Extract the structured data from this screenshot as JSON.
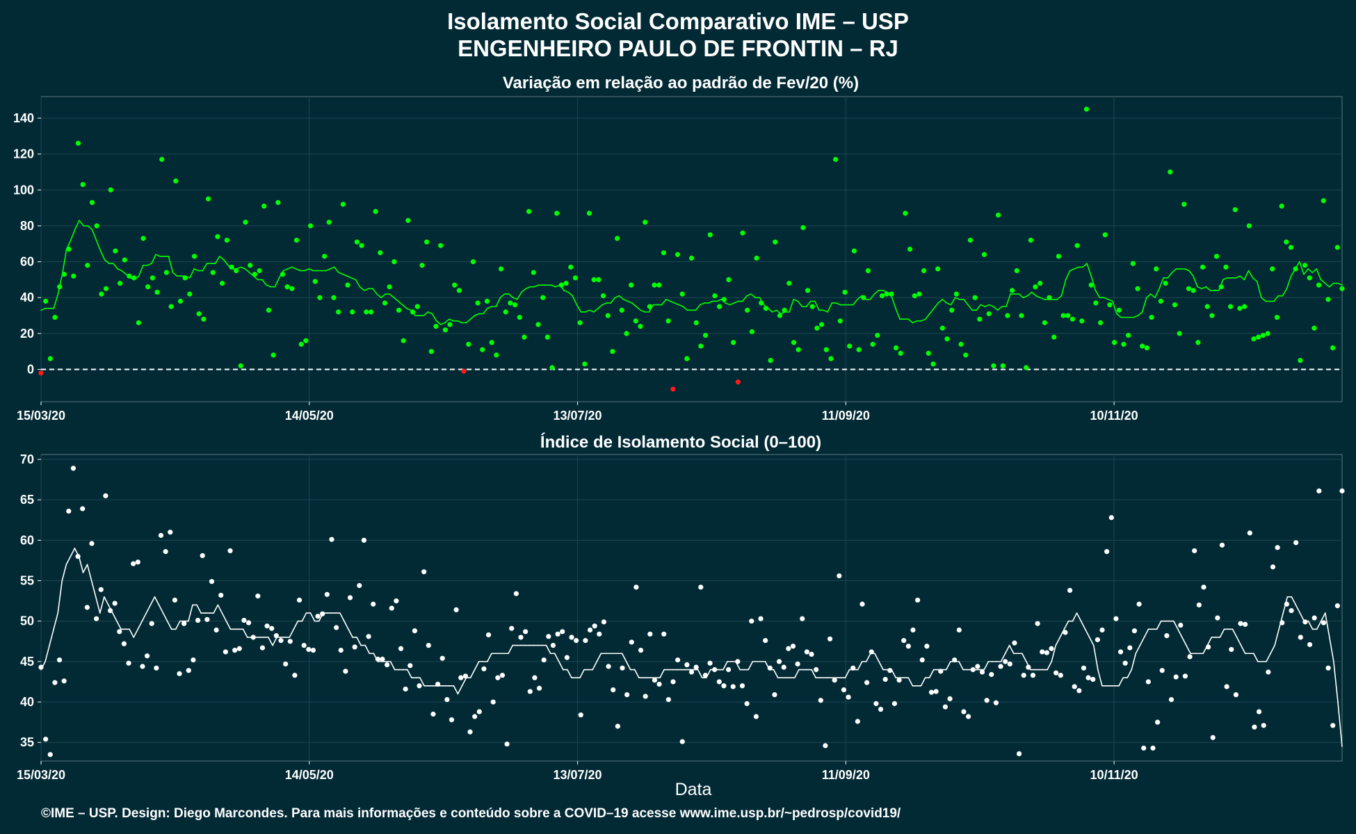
{
  "header": {
    "title_line1": "Isolamento Social Comparativo IME – USP",
    "title_line2": "ENGENHEIRO PAULO DE FRONTIN – RJ"
  },
  "footer": {
    "caption": "©IME – USP. Design: Diego Marcondes. Para mais informações e conteúdo sobre a COVID–19 acesse www.ime.usp.br/~pedrosp/covid19/"
  },
  "colors": {
    "background": "#022a35",
    "grid": "#1f4752",
    "frame": "#5b7880",
    "positive": "#00ff00",
    "negative": "#ff1a1a",
    "index": "#ffffff"
  },
  "chart_data": [
    {
      "type": "scatter",
      "title": "Variação em relação ao padrão de Fev/20 (%)",
      "xlabel": "",
      "x_start": "2020-03-15",
      "x_end": "2020-12-31",
      "x_ticks": [
        "15/03/20",
        "14/05/20",
        "13/07/20",
        "11/09/20",
        "10/11/20"
      ],
      "y_ticks": [
        0,
        20,
        40,
        60,
        80,
        100,
        120,
        140
      ],
      "ylim": [
        -18,
        152
      ],
      "reference_line": 0,
      "grid": true,
      "points": [
        -2,
        38,
        6,
        29,
        46,
        53,
        67,
        52,
        126,
        103,
        58,
        93,
        80,
        42,
        45,
        100,
        66,
        48,
        61,
        52,
        51,
        26,
        73,
        46,
        51,
        43,
        117,
        54,
        35,
        105,
        38,
        51,
        42,
        63,
        31,
        28,
        95,
        54,
        74,
        48,
        72,
        57,
        55,
        2,
        82,
        58,
        53,
        55,
        91,
        33,
        8,
        93,
        53,
        46,
        45,
        72,
        14,
        16,
        80,
        49,
        40,
        63,
        82,
        40,
        32,
        92,
        47,
        32,
        71,
        69,
        32,
        32,
        88,
        65,
        37,
        46,
        60,
        33,
        16,
        83,
        32,
        35,
        58,
        71,
        10,
        24,
        69,
        22,
        25,
        47,
        44,
        -1,
        14,
        60,
        37,
        11,
        38,
        15,
        8,
        56,
        32,
        37,
        36,
        29,
        18,
        88,
        54,
        25,
        40,
        18,
        1,
        87,
        47,
        48,
        57,
        51,
        26,
        3,
        87,
        50,
        50,
        41,
        30,
        10,
        73,
        33,
        20,
        47,
        27,
        24,
        82,
        35,
        47,
        47,
        65,
        27,
        -11,
        64,
        42,
        6,
        62,
        26,
        13,
        19,
        75,
        41,
        35,
        39,
        50,
        15,
        -7,
        76,
        33,
        21,
        62,
        37,
        34,
        5,
        71,
        30,
        33,
        48,
        15,
        11,
        79,
        44,
        35,
        23,
        25,
        11,
        6,
        117,
        27,
        43,
        13,
        66,
        11,
        40,
        55,
        14,
        19,
        41,
        42,
        42,
        12,
        9,
        87,
        67,
        41,
        42,
        55,
        9,
        3,
        56,
        23,
        17,
        33,
        42,
        14,
        8,
        72,
        40,
        28,
        64,
        31,
        2,
        86,
        2,
        30,
        44,
        55,
        30,
        1,
        72,
        46,
        48,
        26,
        40,
        18,
        63,
        30,
        30,
        28,
        69,
        27,
        145,
        47,
        37,
        26,
        75,
        36,
        15,
        33,
        14,
        19,
        59,
        45,
        13,
        12,
        29,
        56,
        38,
        48,
        110,
        36,
        20,
        92,
        45,
        44,
        15,
        57,
        35,
        30,
        63,
        46,
        57,
        35,
        89,
        34,
        35,
        80,
        17,
        18,
        19,
        20,
        56,
        29,
        91,
        71,
        68,
        56,
        5,
        58,
        51,
        23,
        47,
        94,
        39,
        12,
        68,
        45
      ],
      "moving_average": [
        33,
        34,
        34,
        34,
        42,
        53,
        67,
        72,
        78,
        83,
        80,
        80,
        78,
        72,
        66,
        61,
        59,
        59,
        56,
        55,
        53,
        51,
        50,
        52,
        58,
        58,
        59,
        64,
        63,
        63,
        63,
        54,
        52,
        52,
        52,
        51,
        56,
        55,
        55,
        59,
        59,
        59,
        63,
        61,
        58,
        56,
        56,
        57,
        56,
        54,
        52,
        50,
        50,
        47,
        46,
        46,
        51,
        55,
        56,
        57,
        56,
        55,
        55,
        56,
        55,
        55,
        55,
        55,
        56,
        57,
        54,
        53,
        52,
        51,
        50,
        46,
        44,
        45,
        45,
        42,
        40,
        42,
        42,
        40,
        38,
        36,
        34,
        33,
        30,
        30,
        30,
        32,
        31,
        27,
        25,
        26,
        28,
        27,
        27,
        26,
        26,
        28,
        30,
        31,
        31,
        34,
        35,
        35,
        40,
        42,
        42,
        40,
        39,
        43,
        45,
        46,
        46,
        47,
        47,
        47,
        47,
        46,
        47,
        44,
        43,
        41,
        36,
        32,
        32,
        33,
        32,
        34,
        36,
        37,
        37,
        40,
        41,
        39,
        38,
        37,
        35,
        33,
        32,
        32,
        36,
        36,
        36,
        39,
        38,
        37,
        36,
        35,
        33,
        33,
        33,
        36,
        37,
        37,
        38,
        38,
        39,
        37,
        36,
        37,
        38,
        38,
        41,
        42,
        40,
        40,
        36,
        34,
        32,
        33,
        31,
        32,
        32,
        39,
        38,
        35,
        35,
        38,
        38,
        33,
        33,
        32,
        37,
        37,
        36,
        36,
        36,
        36,
        39,
        41,
        39,
        39,
        42,
        44,
        44,
        43,
        41,
        34,
        28,
        28,
        28,
        26,
        27,
        27,
        28,
        31,
        34,
        37,
        39,
        37,
        36,
        40,
        39,
        39,
        36,
        33,
        33,
        36,
        35,
        36,
        35,
        33,
        35,
        35,
        42,
        42,
        42,
        40,
        41,
        43,
        41,
        40,
        39,
        39,
        39,
        39,
        41,
        50,
        55,
        56,
        57,
        57,
        59,
        52,
        44,
        40,
        40,
        39,
        38,
        31,
        29,
        29,
        29,
        29,
        30,
        32,
        40,
        42,
        40,
        45,
        51,
        51,
        54,
        56,
        56,
        56,
        55,
        52,
        46,
        45,
        46,
        44,
        44,
        44,
        50,
        51,
        51,
        51,
        52,
        50,
        55,
        51,
        49,
        40,
        38,
        38,
        38,
        41,
        41,
        45,
        52,
        56,
        60,
        53,
        56,
        54,
        56,
        50,
        48,
        46,
        48,
        48,
        47
      ]
    },
    {
      "type": "scatter",
      "title": "Índice de Isolamento Social (0–100)",
      "xlabel": "Data",
      "x_start": "2020-03-15",
      "x_end": "2020-12-31",
      "x_ticks": [
        "15/03/20",
        "14/05/20",
        "13/07/20",
        "11/09/20",
        "10/11/20"
      ],
      "y_ticks": [
        35,
        40,
        45,
        50,
        55,
        60,
        65,
        70
      ],
      "ylim": [
        32.7,
        70.6
      ],
      "grid": true,
      "points": [
        44.3,
        35.4,
        33.5,
        42.4,
        45.2,
        42.6,
        63.6,
        68.9,
        58.0,
        63.9,
        51.7,
        59.6,
        50.3,
        53.9,
        65.5,
        51.3,
        52.2,
        48.7,
        47.2,
        44.8,
        57.1,
        57.3,
        44.4,
        45.7,
        49.7,
        44.2,
        60.6,
        58.6,
        61.0,
        52.6,
        43.5,
        49.7,
        43.9,
        45.2,
        50.1,
        58.1,
        50.2,
        54.9,
        48.9,
        53.2,
        46.2,
        58.7,
        46.4,
        46.6,
        50.1,
        49.8,
        48.0,
        53.1,
        46.7,
        49.4,
        49.1,
        48.2,
        47.6,
        44.7,
        47.5,
        43.3,
        52.6,
        47.0,
        46.5,
        46.4,
        50.6,
        50.9,
        53.3,
        60.1,
        49.2,
        46.4,
        43.8,
        52.9,
        46.8,
        54.4,
        60.0,
        48.1,
        52.1,
        45.3,
        45.3,
        44.6,
        51.6,
        52.5,
        46.6,
        41.6,
        44.5,
        48.8,
        42.0,
        56.1,
        47.0,
        38.5,
        42.2,
        45.4,
        40.3,
        37.8,
        51.4,
        43.0,
        43.2,
        36.3,
        38.2,
        38.8,
        44.1,
        48.3,
        40.0,
        43.0,
        43.3,
        34.8,
        49.1,
        53.4,
        48.0,
        48.7,
        41.3,
        43.0,
        41.7,
        45.2,
        48.1,
        47.0,
        48.4,
        48.7,
        45.5,
        48.0,
        47.6,
        38.4,
        47.6,
        48.9,
        49.4,
        48.4,
        49.9,
        44.4,
        41.5,
        37.0,
        44.2,
        40.9,
        47.4,
        54.2,
        46.4,
        40.7,
        48.4,
        42.7,
        42.2,
        48.4,
        40.3,
        42.5,
        45.2,
        35.1,
        44.6,
        43.7,
        44.3,
        54.2,
        43.3,
        44.8,
        44.0,
        42.5,
        42.0,
        44.0,
        41.9,
        45.0,
        42.0,
        39.8,
        50.0,
        38.2,
        50.3,
        47.6,
        44.2,
        40.9,
        45.0,
        44.3,
        46.6,
        46.9,
        44.7,
        50.3,
        46.2,
        45.9,
        44.0,
        40.2,
        34.6,
        47.8,
        42.7,
        55.6,
        41.5,
        40.6,
        44.2,
        37.6,
        52.1,
        42.4,
        46.2,
        39.8,
        39.1,
        42.8,
        43.9,
        39.8,
        42.7,
        47.6,
        46.9,
        48.9,
        52.6,
        45.2,
        46.9,
        41.2,
        41.3,
        43.8,
        39.4,
        40.4,
        45.2,
        48.9,
        38.8,
        38.2,
        44.0,
        44.4,
        43.7,
        40.2,
        43.4,
        39.9,
        44.4,
        45.0,
        44.7,
        47.3,
        33.6,
        43.3,
        44.3,
        43.3,
        49.7,
        46.2,
        46.1,
        46.6,
        43.6,
        43.3,
        48.6,
        53.8,
        41.9,
        41.4,
        44.2,
        43.0,
        42.8,
        47.7,
        48.9,
        58.6,
        62.8,
        50.3,
        46.2,
        44.8,
        46.7,
        48.8,
        52.1,
        34.3,
        42.5,
        34.3,
        37.5,
        43.9,
        48.2,
        40.3,
        43.1,
        49.5,
        43.2,
        45.6,
        58.7,
        52.0,
        54.2,
        46.8,
        35.6,
        50.4,
        59.4,
        41.9,
        46.5,
        40.9,
        49.7,
        49.6,
        60.9,
        36.9,
        38.8,
        37.1,
        43.7,
        56.7,
        59.1,
        49.8,
        52.1,
        51.3,
        59.7,
        48.0,
        49.9,
        47.1,
        50.4,
        66.1,
        49.8,
        44.2,
        37.1,
        51.9,
        66.1
      ],
      "moving_average": [
        44,
        45,
        47,
        49,
        51,
        55,
        57,
        58,
        59,
        58,
        56,
        57,
        55,
        53,
        51,
        53,
        52,
        51,
        50,
        49,
        49,
        49,
        48,
        49,
        50,
        51,
        52,
        53,
        52,
        51,
        50,
        49,
        49,
        50,
        50,
        50,
        52,
        52,
        51,
        51,
        51,
        51,
        52,
        51,
        50,
        49,
        49,
        49,
        49,
        48,
        48,
        48,
        48,
        48,
        48,
        47,
        48,
        48,
        48,
        48,
        49,
        50,
        50,
        51,
        51,
        50,
        50,
        51,
        51,
        51,
        51,
        51,
        50,
        49,
        48,
        48,
        47,
        47,
        46,
        46,
        45,
        45,
        45,
        45,
        44,
        44,
        44,
        44,
        43,
        43,
        43,
        42,
        42,
        42,
        42,
        42,
        42,
        42,
        42,
        41,
        42,
        43,
        43,
        44,
        45,
        45,
        45,
        46,
        46,
        46,
        46,
        46,
        47,
        47,
        47,
        47,
        47,
        47,
        47,
        47,
        47,
        46,
        46,
        45,
        44,
        44,
        43,
        43,
        43,
        44,
        44,
        44,
        45,
        46,
        46,
        46,
        46,
        46,
        46,
        45,
        44,
        44,
        43,
        43,
        43,
        43,
        43,
        43,
        44,
        44,
        44,
        44,
        44,
        44,
        44,
        44,
        44,
        43,
        43,
        44,
        44,
        44,
        44,
        45,
        45,
        45,
        44,
        44,
        44,
        45,
        45,
        45,
        45,
        44,
        44,
        43,
        43,
        43,
        43,
        43,
        44,
        44,
        44,
        44,
        43,
        43,
        43,
        43,
        43,
        43,
        43,
        43,
        44,
        44,
        44,
        45,
        45,
        46,
        46,
        45,
        44,
        44,
        44,
        43,
        43,
        43,
        43,
        42,
        42,
        42,
        43,
        43,
        44,
        44,
        44,
        44,
        45,
        45,
        45,
        44,
        44,
        44,
        44,
        44,
        44,
        45,
        45,
        45,
        45,
        46,
        47,
        46,
        46,
        46,
        45,
        44,
        44,
        44,
        44,
        44,
        45,
        47,
        48,
        49,
        50,
        50,
        51,
        50,
        49,
        48,
        47,
        44,
        42,
        42,
        42,
        42,
        42,
        43,
        43,
        44,
        46,
        47,
        48,
        49,
        49,
        49,
        50,
        50,
        50,
        50,
        49,
        48,
        47,
        46,
        46,
        46,
        46,
        47,
        48,
        48,
        48,
        49,
        49,
        49,
        48,
        47,
        46,
        46,
        46,
        45,
        45,
        45,
        46,
        47,
        49,
        51,
        53,
        53,
        52,
        51,
        50,
        50,
        49,
        49,
        50,
        51,
        48,
        45,
        40,
        35
      ],
      "moving_average_end": 34.5
    }
  ]
}
